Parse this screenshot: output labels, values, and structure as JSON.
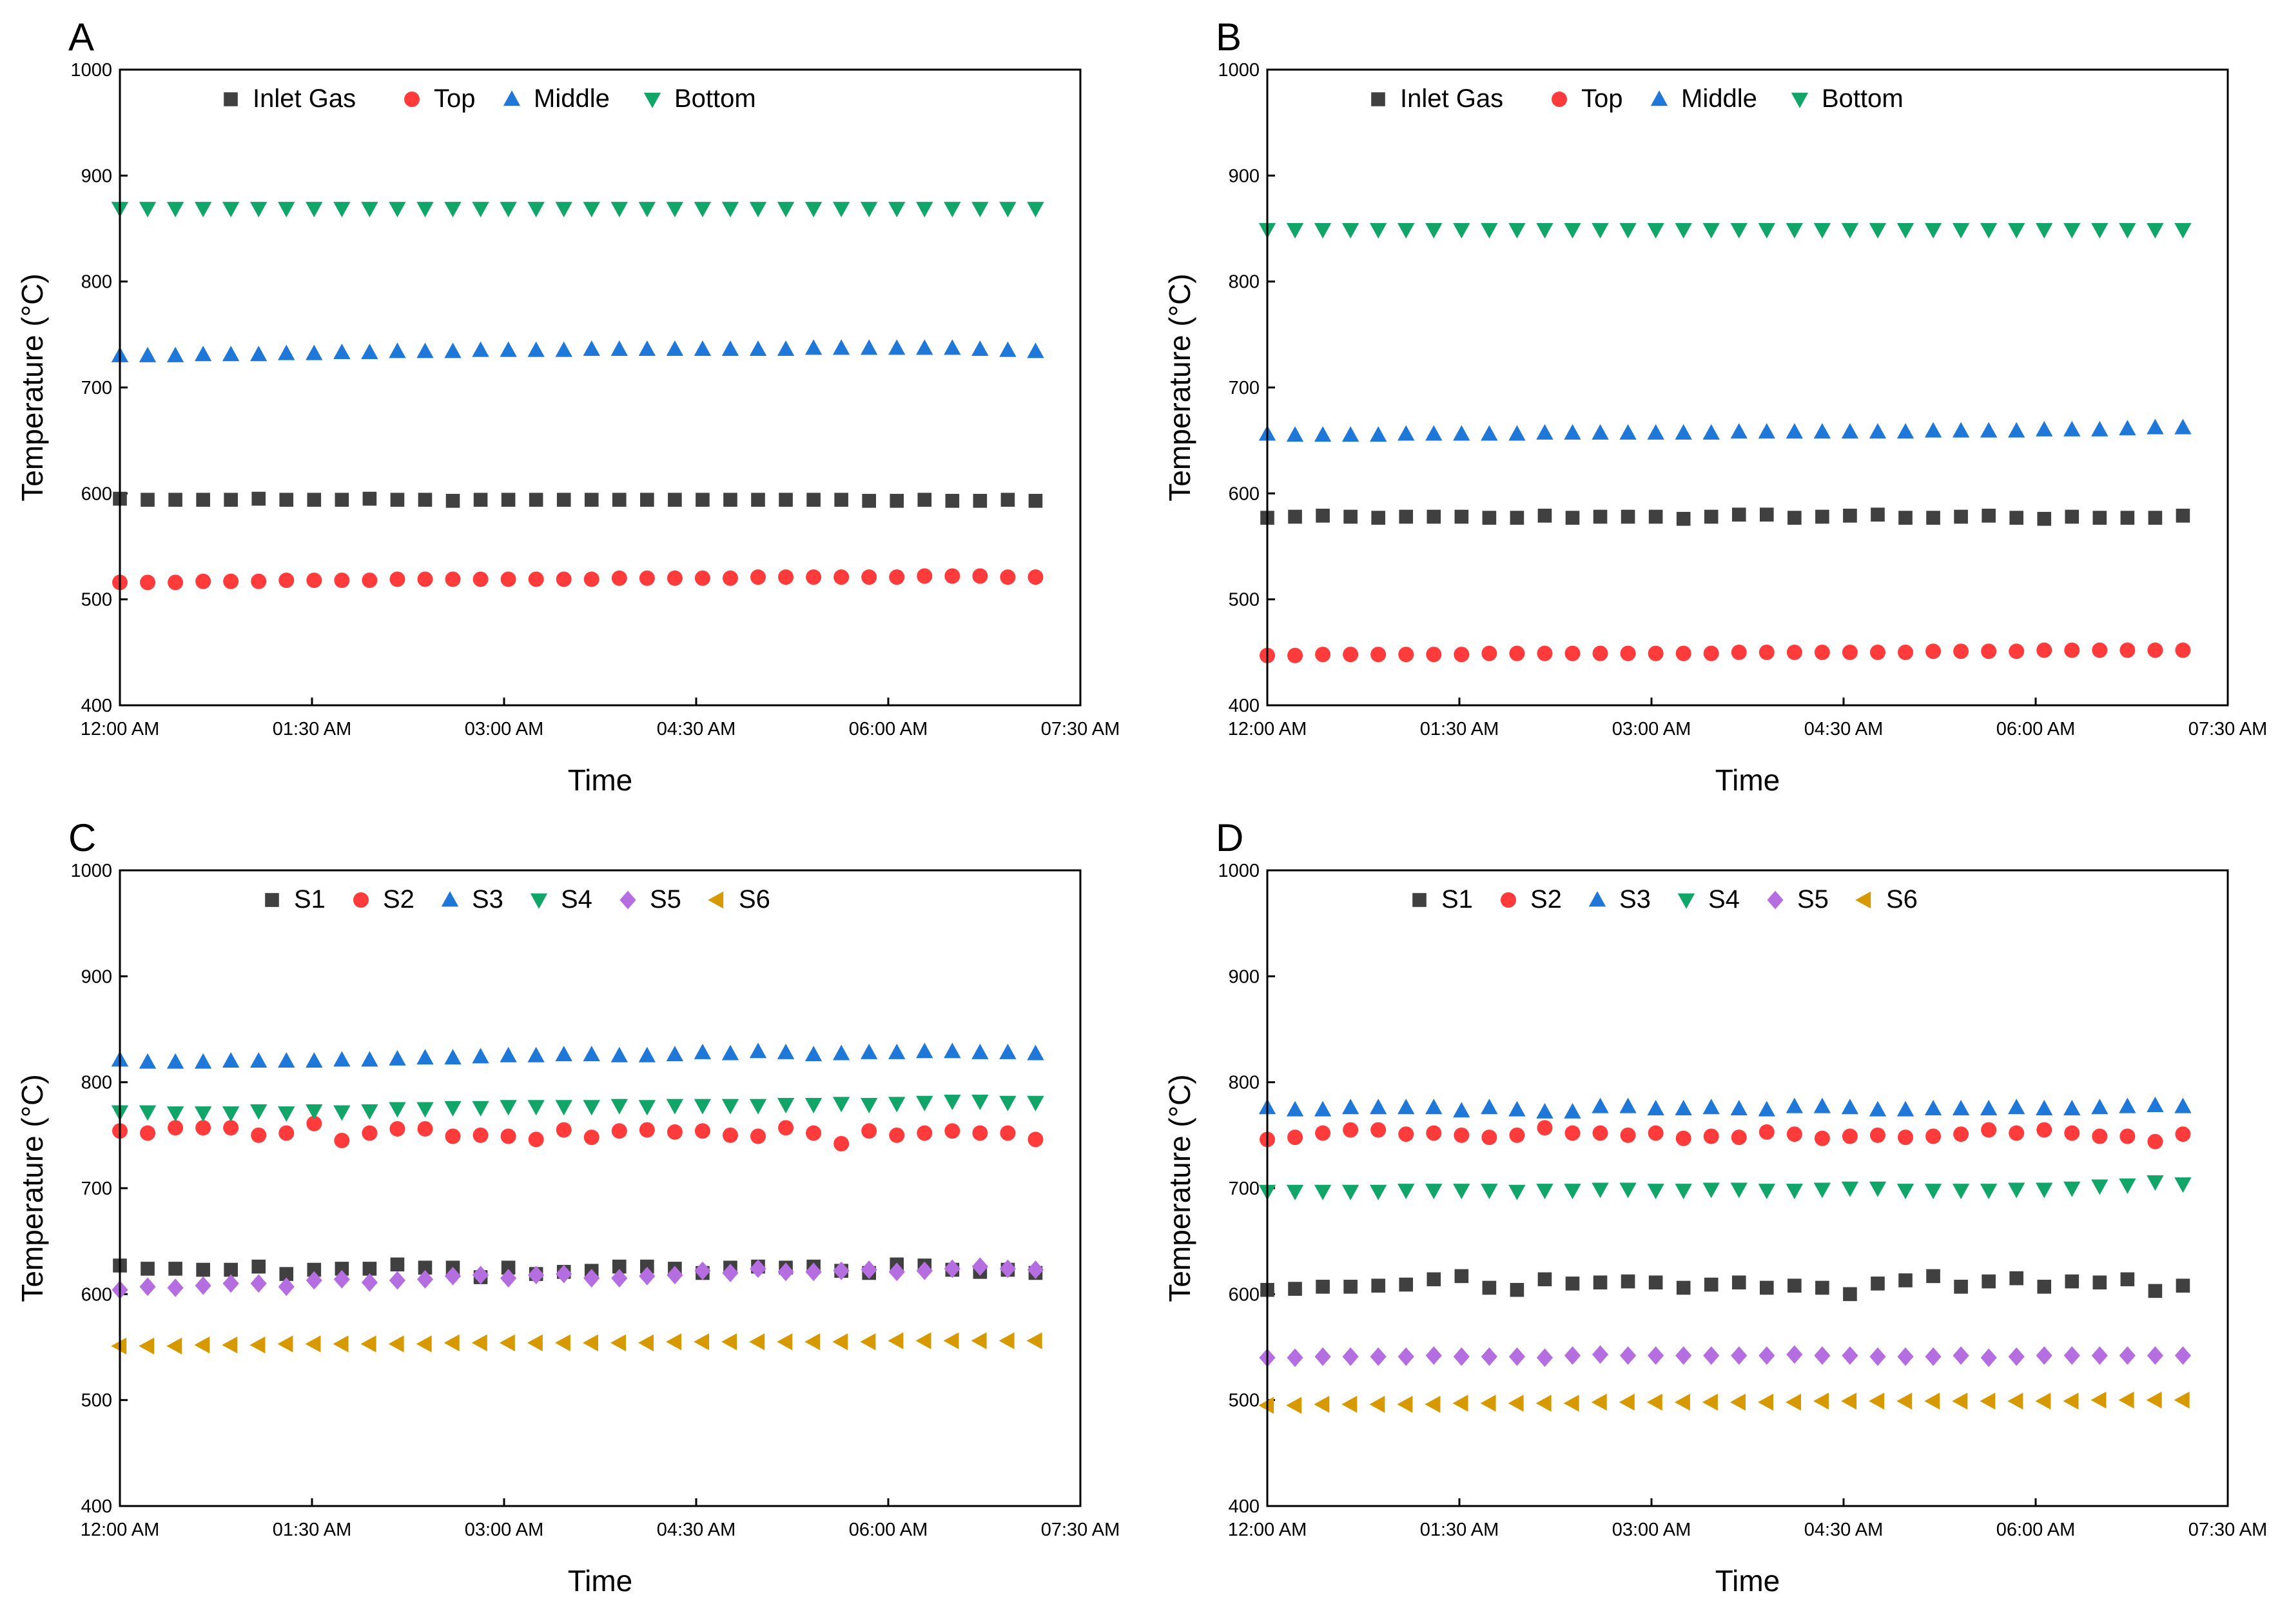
{
  "chart_data": [
    {
      "panel": "A",
      "type": "scatter",
      "xlabel": "Time",
      "ylabel": "Temperature (°C)",
      "xlim": [
        "12:00 AM",
        "07:30 AM"
      ],
      "ylim": [
        400,
        1000
      ],
      "x_ticks": [
        "12:00 AM",
        "01:30 AM",
        "03:00 AM",
        "04:30 AM",
        "06:00 AM",
        "07:30 AM"
      ],
      "y_ticks": [
        "400",
        "500",
        "600",
        "700",
        "800",
        "900",
        "1000"
      ],
      "x": [
        "12:00 AM",
        "12:13 AM",
        "12:26 AM",
        "12:39 AM",
        "12:52 AM",
        "1:05 AM",
        "1:18 AM",
        "1:31 AM",
        "1:44 AM",
        "1:57 AM",
        "2:10 AM",
        "2:23 AM",
        "2:36 AM",
        "2:49 AM",
        "3:02 AM",
        "3:15 AM",
        "3:28 AM",
        "3:41 AM",
        "3:54 AM",
        "4:07 AM",
        "4:20 AM",
        "4:33 AM",
        "4:46 AM",
        "4:59 AM",
        "5:12 AM",
        "5:25 AM",
        "5:38 AM",
        "5:51 AM",
        "6:04 AM",
        "6:17 AM",
        "6:30 AM",
        "6:43 AM",
        "6:56 AM",
        "7:09 AM"
      ],
      "legend_position": "top-left",
      "series": [
        {
          "name": "Inlet Gas",
          "marker": "square",
          "color": "#404040",
          "values": [
            595,
            594,
            594,
            594,
            594,
            595,
            594,
            594,
            594,
            595,
            594,
            594,
            593,
            594,
            594,
            594,
            594,
            594,
            594,
            594,
            594,
            594,
            594,
            594,
            594,
            594,
            594,
            593,
            593,
            594,
            593,
            593,
            594,
            593
          ]
        },
        {
          "name": "Top",
          "marker": "circle",
          "color": "#ff3b3b",
          "values": [
            516,
            516,
            516,
            517,
            517,
            517,
            518,
            518,
            518,
            518,
            519,
            519,
            519,
            519,
            519,
            519,
            519,
            519,
            520,
            520,
            520,
            520,
            520,
            521,
            521,
            521,
            521,
            521,
            521,
            522,
            522,
            522,
            521,
            521
          ]
        },
        {
          "name": "Middle",
          "marker": "triangle-up",
          "color": "#1f78d8",
          "values": [
            730,
            730,
            730,
            731,
            731,
            731,
            732,
            732,
            733,
            733,
            734,
            734,
            734,
            735,
            735,
            735,
            735,
            736,
            736,
            736,
            736,
            736,
            736,
            736,
            736,
            737,
            737,
            737,
            737,
            737,
            737,
            736,
            735,
            734
          ]
        },
        {
          "name": "Bottom",
          "marker": "triangle-down",
          "color": "#12a56a",
          "values": [
            869,
            869,
            869,
            869,
            869,
            869,
            869,
            869,
            869,
            869,
            869,
            869,
            869,
            869,
            869,
            869,
            869,
            869,
            869,
            869,
            869,
            869,
            869,
            869,
            869,
            869,
            869,
            869,
            869,
            869,
            869,
            869,
            869,
            869
          ]
        }
      ]
    },
    {
      "panel": "B",
      "type": "scatter",
      "xlabel": "Time",
      "ylabel": "Temperature (°C)",
      "xlim": [
        "12:00 AM",
        "07:30 AM"
      ],
      "ylim": [
        400,
        1000
      ],
      "x_ticks": [
        "12:00 AM",
        "01:30 AM",
        "03:00 AM",
        "04:30 AM",
        "06:00 AM",
        "07:30 AM"
      ],
      "y_ticks": [
        "400",
        "500",
        "600",
        "700",
        "800",
        "900",
        "1000"
      ],
      "x": [
        "12:00 AM",
        "12:13 AM",
        "12:26 AM",
        "12:39 AM",
        "12:52 AM",
        "1:05 AM",
        "1:18 AM",
        "1:31 AM",
        "1:44 AM",
        "1:57 AM",
        "2:10 AM",
        "2:23 AM",
        "2:36 AM",
        "2:49 AM",
        "3:02 AM",
        "3:15 AM",
        "3:28 AM",
        "3:41 AM",
        "3:54 AM",
        "4:07 AM",
        "4:20 AM",
        "4:33 AM",
        "4:46 AM",
        "4:59 AM",
        "5:12 AM",
        "5:25 AM",
        "5:38 AM",
        "5:51 AM",
        "6:04 AM",
        "6:17 AM",
        "6:30 AM",
        "6:43 AM",
        "6:56 AM",
        "7:09 AM"
      ],
      "legend_position": "top-left",
      "series": [
        {
          "name": "Inlet Gas",
          "marker": "square",
          "color": "#404040",
          "values": [
            577,
            578,
            579,
            578,
            577,
            578,
            578,
            578,
            577,
            577,
            579,
            577,
            578,
            578,
            578,
            576,
            578,
            580,
            580,
            577,
            578,
            579,
            580,
            577,
            577,
            578,
            579,
            577,
            576,
            578,
            577,
            577,
            577,
            579
          ]
        },
        {
          "name": "Top",
          "marker": "circle",
          "color": "#ff3b3b",
          "values": [
            447,
            447,
            448,
            448,
            448,
            448,
            448,
            448,
            449,
            449,
            449,
            449,
            449,
            449,
            449,
            449,
            449,
            450,
            450,
            450,
            450,
            450,
            450,
            450,
            451,
            451,
            451,
            451,
            452,
            452,
            452,
            452,
            452,
            452
          ]
        },
        {
          "name": "Middle",
          "marker": "triangle-up",
          "color": "#1f78d8",
          "values": [
            656,
            655,
            655,
            655,
            655,
            656,
            656,
            656,
            656,
            656,
            657,
            657,
            657,
            657,
            657,
            657,
            657,
            658,
            658,
            658,
            658,
            658,
            658,
            658,
            659,
            659,
            659,
            659,
            660,
            660,
            660,
            661,
            662,
            662
          ]
        },
        {
          "name": "Bottom",
          "marker": "triangle-down",
          "color": "#12a56a",
          "values": [
            849,
            849,
            849,
            849,
            849,
            849,
            849,
            849,
            849,
            849,
            849,
            849,
            849,
            849,
            849,
            849,
            849,
            849,
            849,
            849,
            849,
            849,
            849,
            849,
            849,
            849,
            849,
            849,
            849,
            849,
            849,
            849,
            849,
            849
          ]
        }
      ]
    },
    {
      "panel": "C",
      "type": "scatter",
      "xlabel": "Time",
      "ylabel": "Temperature (°C)",
      "xlim": [
        "12:00 AM",
        "07:30 AM"
      ],
      "ylim": [
        400,
        1000
      ],
      "x_ticks": [
        "12:00 AM",
        "01:30 AM",
        "03:00 AM",
        "04:30 AM",
        "06:00 AM",
        "07:30 AM"
      ],
      "y_ticks": [
        "400",
        "500",
        "600",
        "700",
        "800",
        "900",
        "1000"
      ],
      "x": [
        "12:00 AM",
        "12:13 AM",
        "12:26 AM",
        "12:39 AM",
        "12:52 AM",
        "1:05 AM",
        "1:18 AM",
        "1:31 AM",
        "1:44 AM",
        "1:57 AM",
        "2:10 AM",
        "2:23 AM",
        "2:36 AM",
        "2:49 AM",
        "3:02 AM",
        "3:15 AM",
        "3:28 AM",
        "3:41 AM",
        "3:54 AM",
        "4:07 AM",
        "4:20 AM",
        "4:33 AM",
        "4:46 AM",
        "4:59 AM",
        "5:12 AM",
        "5:25 AM",
        "5:38 AM",
        "5:51 AM",
        "6:04 AM",
        "6:17 AM",
        "6:30 AM",
        "6:43 AM",
        "6:56 AM",
        "7:09 AM"
      ],
      "legend_position": "top-left",
      "series": [
        {
          "name": "S1",
          "marker": "square",
          "color": "#404040",
          "values": [
            627,
            624,
            624,
            623,
            623,
            626,
            619,
            623,
            624,
            624,
            628,
            625,
            625,
            616,
            625,
            619,
            621,
            622,
            626,
            626,
            624,
            620,
            625,
            626,
            625,
            626,
            622,
            620,
            628,
            627,
            623,
            621,
            623,
            620
          ]
        },
        {
          "name": "S2",
          "marker": "circle",
          "color": "#ff3b3b",
          "values": [
            754,
            752,
            757,
            757,
            757,
            750,
            752,
            761,
            745,
            752,
            756,
            756,
            749,
            750,
            749,
            746,
            755,
            748,
            754,
            755,
            753,
            754,
            750,
            749,
            757,
            752,
            742,
            754,
            750,
            752,
            754,
            752,
            752,
            746
          ]
        },
        {
          "name": "S3",
          "marker": "triangle-up",
          "color": "#1f78d8",
          "values": [
            821,
            819,
            819,
            819,
            820,
            820,
            820,
            820,
            821,
            821,
            822,
            823,
            823,
            824,
            825,
            825,
            826,
            826,
            825,
            825,
            826,
            828,
            827,
            829,
            828,
            826,
            827,
            828,
            828,
            829,
            829,
            828,
            828,
            827
          ]
        },
        {
          "name": "S4",
          "marker": "triangle-down",
          "color": "#12a56a",
          "values": [
            772,
            772,
            771,
            771,
            771,
            773,
            771,
            773,
            772,
            773,
            775,
            775,
            776,
            776,
            777,
            777,
            777,
            777,
            778,
            777,
            778,
            778,
            778,
            778,
            779,
            779,
            780,
            779,
            780,
            781,
            782,
            782,
            781,
            781
          ]
        },
        {
          "name": "S5",
          "marker": "diamond",
          "color": "#b56ee0",
          "values": [
            604,
            607,
            606,
            608,
            610,
            610,
            607,
            613,
            614,
            611,
            613,
            614,
            617,
            618,
            615,
            618,
            619,
            615,
            615,
            617,
            618,
            622,
            620,
            624,
            621,
            621,
            622,
            623,
            621,
            622,
            624,
            626,
            624,
            623
          ]
        },
        {
          "name": "S6",
          "marker": "triangle-left",
          "color": "#d69a00",
          "values": [
            551,
            551,
            551,
            552,
            552,
            552,
            553,
            553,
            553,
            553,
            553,
            553,
            554,
            554,
            554,
            554,
            554,
            554,
            554,
            554,
            555,
            555,
            555,
            555,
            555,
            555,
            555,
            555,
            556,
            556,
            556,
            556,
            556,
            556
          ]
        }
      ]
    },
    {
      "panel": "D",
      "type": "scatter",
      "xlabel": "Time",
      "ylabel": "Temperature (°C)",
      "xlim": [
        "12:00 AM",
        "07:30 AM"
      ],
      "ylim": [
        400,
        1000
      ],
      "x_ticks": [
        "12:00 AM",
        "01:30 AM",
        "03:00 AM",
        "04:30 AM",
        "06:00 AM",
        "07:30 AM"
      ],
      "y_ticks": [
        "400",
        "500",
        "600",
        "700",
        "800",
        "900",
        "1000"
      ],
      "x": [
        "12:00 AM",
        "12:13 AM",
        "12:26 AM",
        "12:39 AM",
        "12:52 AM",
        "1:05 AM",
        "1:18 AM",
        "1:31 AM",
        "1:44 AM",
        "1:57 AM",
        "2:10 AM",
        "2:23 AM",
        "2:36 AM",
        "2:49 AM",
        "3:02 AM",
        "3:15 AM",
        "3:28 AM",
        "3:41 AM",
        "3:54 AM",
        "4:07 AM",
        "4:20 AM",
        "4:33 AM",
        "4:46 AM",
        "4:59 AM",
        "5:12 AM",
        "5:25 AM",
        "5:38 AM",
        "5:51 AM",
        "6:04 AM",
        "6:17 AM",
        "6:30 AM",
        "6:43 AM",
        "6:56 AM",
        "7:09 AM"
      ],
      "legend_position": "top-left",
      "series": [
        {
          "name": "S1",
          "marker": "square",
          "color": "#404040",
          "values": [
            604,
            605,
            607,
            607,
            608,
            609,
            614,
            617,
            606,
            604,
            614,
            610,
            611,
            612,
            611,
            606,
            609,
            611,
            606,
            608,
            606,
            600,
            610,
            613,
            617,
            607,
            612,
            615,
            607,
            612,
            611,
            614,
            603,
            608
          ]
        },
        {
          "name": "S2",
          "marker": "circle",
          "color": "#ff3b3b",
          "values": [
            746,
            748,
            752,
            755,
            755,
            751,
            752,
            750,
            748,
            750,
            757,
            752,
            752,
            750,
            752,
            747,
            749,
            748,
            753,
            751,
            747,
            749,
            750,
            748,
            749,
            751,
            755,
            752,
            755,
            752,
            749,
            749,
            744,
            751
          ]
        },
        {
          "name": "S3",
          "marker": "triangle-up",
          "color": "#1f78d8",
          "values": [
            776,
            774,
            774,
            776,
            776,
            776,
            776,
            773,
            776,
            774,
            772,
            772,
            777,
            777,
            775,
            775,
            776,
            775,
            774,
            777,
            777,
            776,
            774,
            774,
            775,
            775,
            775,
            776,
            775,
            775,
            776,
            777,
            778,
            777
          ]
        },
        {
          "name": "S4",
          "marker": "triangle-down",
          "color": "#12a56a",
          "values": [
            697,
            697,
            697,
            697,
            697,
            698,
            698,
            698,
            698,
            697,
            698,
            698,
            699,
            699,
            698,
            698,
            699,
            699,
            698,
            698,
            699,
            700,
            700,
            698,
            698,
            698,
            698,
            699,
            699,
            700,
            702,
            703,
            706,
            704
          ]
        },
        {
          "name": "S5",
          "marker": "diamond",
          "color": "#b56ee0",
          "values": [
            540,
            540,
            541,
            541,
            541,
            541,
            542,
            541,
            541,
            541,
            540,
            542,
            543,
            542,
            542,
            542,
            542,
            542,
            542,
            543,
            542,
            542,
            541,
            541,
            541,
            542,
            540,
            541,
            542,
            542,
            542,
            542,
            542,
            542
          ]
        },
        {
          "name": "S6",
          "marker": "triangle-left",
          "color": "#d69a00",
          "values": [
            495,
            495,
            496,
            496,
            496,
            496,
            496,
            497,
            497,
            497,
            497,
            497,
            498,
            498,
            498,
            498,
            498,
            498,
            498,
            498,
            499,
            499,
            499,
            499,
            499,
            499,
            499,
            499,
            499,
            499,
            500,
            500,
            500,
            500
          ]
        }
      ]
    }
  ]
}
